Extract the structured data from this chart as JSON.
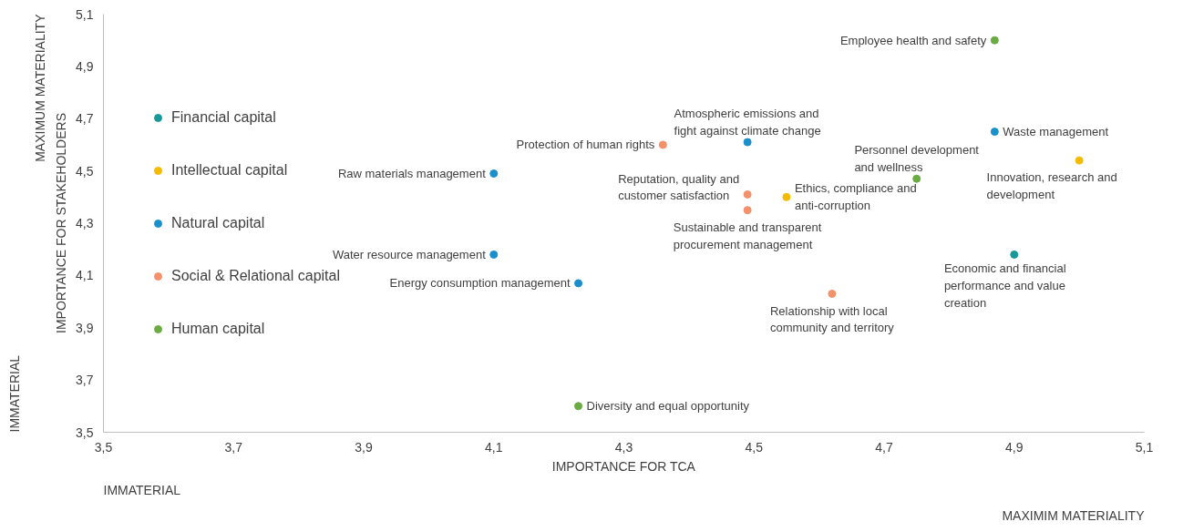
{
  "chart_data": {
    "type": "scatter",
    "xlabel": "IMPORTANCE FOR TCA",
    "ylabel": "IMPORTANCE FOR STAKEHOLDERS",
    "annotations": [
      "IMMATERIAL",
      "MAXIMIM MATERIALITY",
      "MAXIMUM MATERIALITY",
      "IMMATERIAL"
    ],
    "xlim": [
      3.5,
      5.1
    ],
    "ylim": [
      3.5,
      5.1
    ],
    "xticks": [
      {
        "value": 3.5,
        "label": "3,5"
      },
      {
        "value": 3.7,
        "label": "3,7"
      },
      {
        "value": 3.9,
        "label": "3,9"
      },
      {
        "value": 4.1,
        "label": "4,1"
      },
      {
        "value": 4.3,
        "label": "4,3"
      },
      {
        "value": 4.5,
        "label": "4,5"
      },
      {
        "value": 4.7,
        "label": "4,7"
      },
      {
        "value": 4.9,
        "label": "4,9"
      },
      {
        "value": 5.1,
        "label": "5,1"
      }
    ],
    "yticks": [
      {
        "value": 3.5,
        "label": "3,5"
      },
      {
        "value": 3.7,
        "label": "3,7"
      },
      {
        "value": 3.9,
        "label": "3,9"
      },
      {
        "value": 4.1,
        "label": "4,1"
      },
      {
        "value": 4.3,
        "label": "4,3"
      },
      {
        "value": 4.5,
        "label": "4,5"
      },
      {
        "value": 4.7,
        "label": "4,7"
      },
      {
        "value": 4.9,
        "label": "4,9"
      },
      {
        "value": 5.1,
        "label": "5,1"
      }
    ],
    "grid": false,
    "legend": "left",
    "marker": "circle",
    "series": [
      {
        "name": "Financial capital",
        "color": "#17999a",
        "x": [
          4.9
        ],
        "values": [
          4.18
        ],
        "value_labels": [
          "Economic and financial performance and value creation"
        ]
      },
      {
        "name": "Intellectual capital",
        "color": "#f5bb00",
        "x": [
          5.0,
          4.55
        ],
        "values": [
          4.54,
          4.4
        ],
        "value_labels": [
          "Innovation, research and development",
          "Ethics, compliance and anti-corruption"
        ]
      },
      {
        "name": "Natural capital",
        "color": "#1b8fcc",
        "x": [
          4.87,
          4.49,
          4.1,
          4.1,
          4.23
        ],
        "values": [
          4.65,
          4.61,
          4.49,
          4.18,
          4.07
        ],
        "value_labels": [
          "Waste management",
          "Atmospheric emissions and fight against climate change",
          "Raw materials management",
          "Water resource management",
          "Energy consumption management"
        ]
      },
      {
        "name": "Social & Relational capital",
        "color": "#f4916a",
        "x": [
          4.36,
          4.49,
          4.49,
          4.62
        ],
        "values": [
          4.6,
          4.41,
          4.35,
          4.03
        ],
        "value_labels": [
          "Protection of human rights",
          "Reputation, quality and customer satisfaction",
          "Sustainable and transparent procurement management",
          "Relationship with local community and territory"
        ]
      },
      {
        "name": "Human capital",
        "color": "#6aab44",
        "x": [
          4.87,
          4.75,
          4.23
        ],
        "values": [
          5.0,
          4.47,
          3.6
        ],
        "value_labels": [
          "Employee health and safety",
          "Personnel development and wellness",
          "Diversity and equal opportunity"
        ]
      }
    ]
  }
}
